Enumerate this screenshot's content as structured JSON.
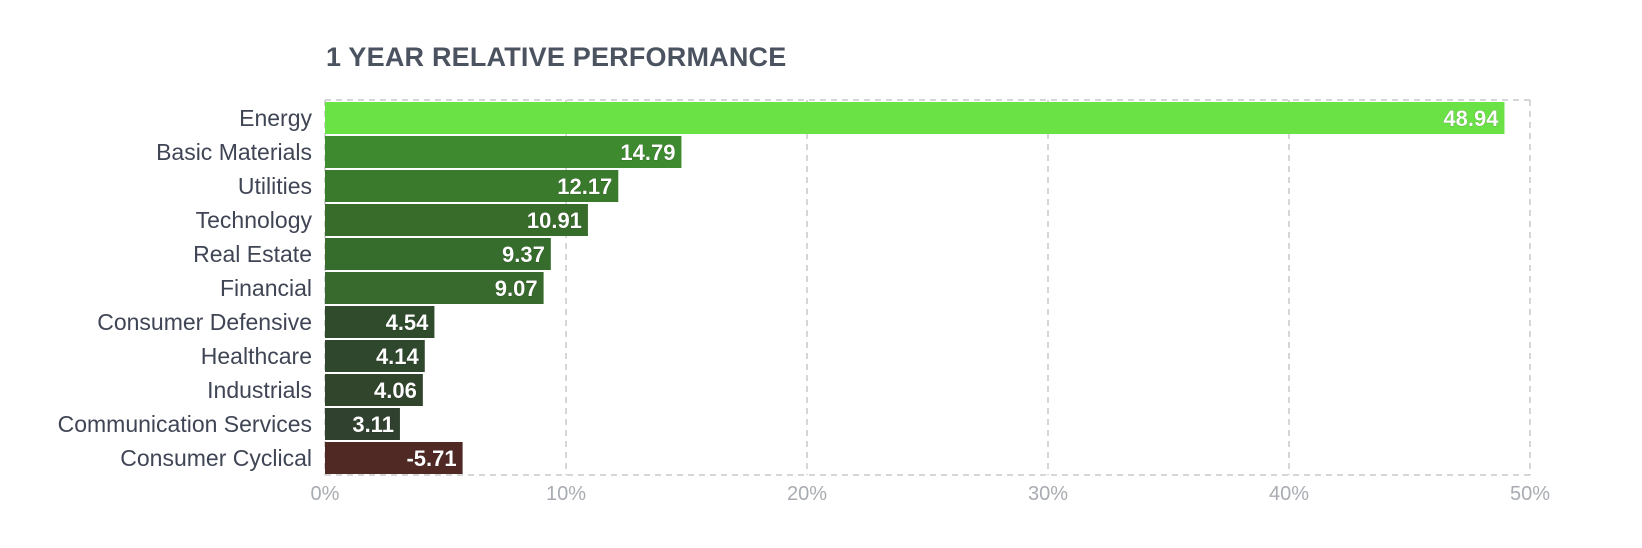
{
  "chart_data": {
    "type": "bar",
    "orientation": "horizontal",
    "title": "1 YEAR RELATIVE PERFORMANCE",
    "categories": [
      "Energy",
      "Basic Materials",
      "Utilities",
      "Technology",
      "Real Estate",
      "Financial",
      "Consumer Defensive",
      "Healthcare",
      "Industrials",
      "Communication Services",
      "Consumer Cyclical"
    ],
    "values": [
      48.94,
      14.79,
      12.17,
      10.91,
      9.37,
      9.07,
      4.54,
      4.14,
      4.06,
      3.11,
      -5.71
    ],
    "value_labels": [
      "48.94",
      "14.79",
      "12.17",
      "10.91",
      "9.37",
      "9.07",
      "4.54",
      "4.14",
      "4.06",
      "3.11",
      "-5.71"
    ],
    "colors": [
      "#6ae246",
      "#3e8a2f",
      "#3a7a2d",
      "#386c2b",
      "#366d2d",
      "#376a2c",
      "#2f4b2c",
      "#2f472d",
      "#30452c",
      "#30412f",
      "#502925"
    ],
    "xlim": [
      0,
      50
    ],
    "xticks": [
      "0%",
      "10%",
      "20%",
      "30%",
      "40%",
      "50%"
    ],
    "xtick_values": [
      0,
      10,
      20,
      30,
      40,
      50
    ],
    "grid": true,
    "xlabel": "",
    "ylabel": ""
  }
}
